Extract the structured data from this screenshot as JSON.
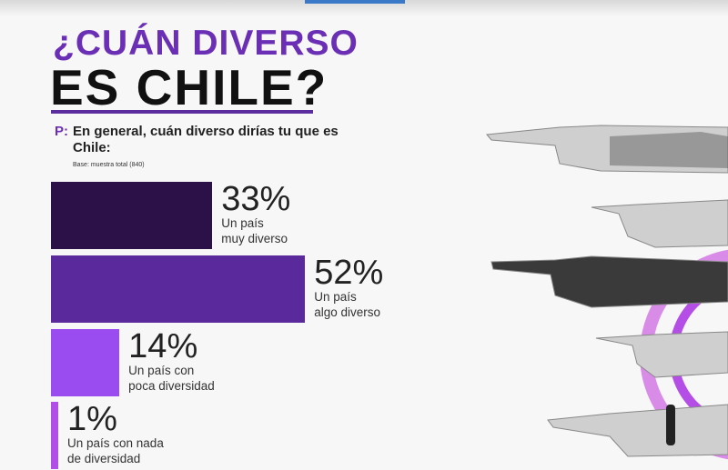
{
  "title_line1": "¿CUÁN DIVERSO",
  "title_line2": "ES CHILE?",
  "question_prefix": "P:",
  "question": "En general, cuán diverso dirías tu que es Chile:",
  "base": "Base: muestra total (840)",
  "chart_data": {
    "type": "bar",
    "orientation": "horizontal",
    "title": "¿CUÁN DIVERSO ES CHILE?",
    "categories": [
      "Un país muy diverso",
      "Un país algo diverso",
      "Un país con poca diversidad",
      "Un país con nada de diversidad"
    ],
    "values": [
      33,
      52,
      14,
      1
    ],
    "value_labels": [
      "33%",
      "52%",
      "14%",
      "1%"
    ],
    "label_lines": [
      [
        "Un país",
        "muy diverso"
      ],
      [
        "Un país",
        "algo diverso"
      ],
      [
        "Un país con",
        "poca diversidad"
      ],
      [
        "Un país con nada",
        "de diversidad"
      ]
    ],
    "colors": [
      "#2b1147",
      "#5a2a9c",
      "#9a4cf0",
      "#b24ee8"
    ],
    "unit": "%"
  }
}
